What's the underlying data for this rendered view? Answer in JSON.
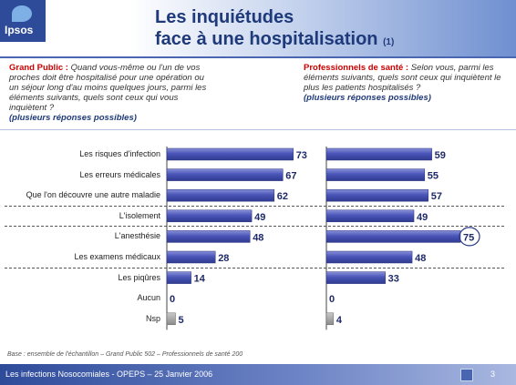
{
  "logo": {
    "text": "Ipsos"
  },
  "title": {
    "line1": "Les inquiétudes",
    "line2": "face à une hospitalisation",
    "note": "(1)"
  },
  "left_question": {
    "label": "Grand Public :",
    "text": "Quand vous-même ou l'un de vos proches doit être hospitalisé pour une opération ou un séjour long d'au moins quelques jours, parmi les éléments suivants, quels sont ceux qui vous inquiètent ?",
    "multi": "(plusieurs réponses possibles)"
  },
  "right_question": {
    "label": "Professionnels de santé :",
    "text": "Selon vous, parmi les éléments suivants, quels sont ceux qui inquiètent le plus les patients hospitalisés ?",
    "multi": "(plusieurs réponses possibles)"
  },
  "chart_data": {
    "type": "bar",
    "orientation": "horizontal",
    "categories": [
      "Les risques d'infection",
      "Les erreurs médicales",
      "Que l'on découvre une autre maladie",
      "L'isolement",
      "L'anesthésie",
      "Les examens médicaux",
      "Les piqûres",
      "Aucun",
      "Nsp"
    ],
    "series": [
      {
        "name": "Grand Public",
        "values": [
          73,
          67,
          62,
          49,
          48,
          28,
          14,
          0,
          5
        ]
      },
      {
        "name": "Professionnels de santé",
        "values": [
          59,
          55,
          57,
          49,
          75,
          48,
          33,
          0,
          4
        ]
      }
    ],
    "xlim": [
      0,
      100
    ],
    "highlighted": {
      "series": "Professionnels de santé",
      "category": "L'anesthésie"
    },
    "colors": {
      "bar": "#4a55b8",
      "bar_light": "#8890d8",
      "grey": "#8a8a8a",
      "label": "#1f2a6a",
      "highlight_circle": "#2a3a8a"
    }
  },
  "footer": {
    "note": "Base : ensemble de l'échantillon – Grand Public 502 – Professionnels de santé 200",
    "text": "Les infections Nosocomiales - OPEPS – 25 Janvier 2006",
    "page": "3"
  }
}
